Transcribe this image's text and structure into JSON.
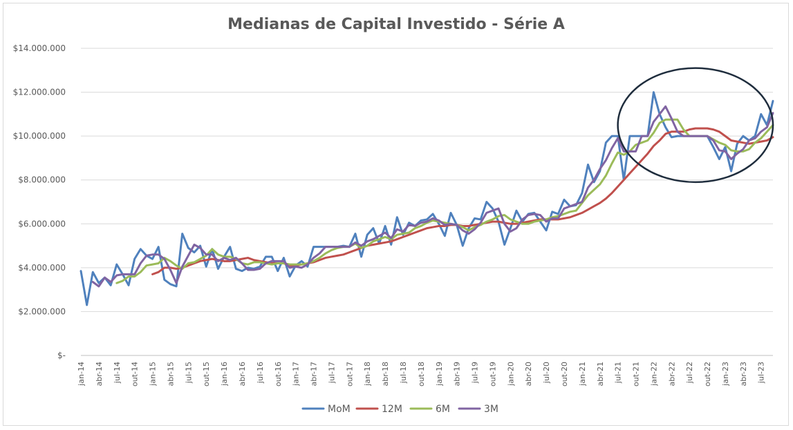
{
  "chart_data": {
    "type": "line",
    "title": "Medianas de Capital Investido - Série A",
    "xlabel": "",
    "ylabel": "",
    "ylim": [
      0,
      14000000
    ],
    "y_ticks": [
      {
        "value": 0,
        "label": "$-"
      },
      {
        "value": 2000000,
        "label": "$2.000.000"
      },
      {
        "value": 4000000,
        "label": "$4.000.000"
      },
      {
        "value": 6000000,
        "label": "$6.000.000"
      },
      {
        "value": 8000000,
        "label": "$8.000.000"
      },
      {
        "value": 10000000,
        "label": "$10.000.000"
      },
      {
        "value": 12000000,
        "label": "$12.000.000"
      },
      {
        "value": 14000000,
        "label": "$14.000.000"
      }
    ],
    "grid": true,
    "legend_position": "bottom",
    "x_tick_labels": [
      "jan-14",
      "abr-14",
      "jul-14",
      "out-14",
      "jan-15",
      "abr-15",
      "jul-15",
      "out-15",
      "jan-16",
      "abr-16",
      "jul-16",
      "out-16",
      "jan-17",
      "abr-17",
      "jul-17",
      "out-17",
      "jan-18",
      "abr-18",
      "jul-18",
      "out-18",
      "jan-19",
      "abr-19",
      "jul-19",
      "out-19",
      "jan-20",
      "abr-20",
      "jul-20",
      "out-20",
      "jan-21",
      "abr-21",
      "jul-21",
      "out-21",
      "jan-22",
      "abr-22",
      "jul-22",
      "out-22",
      "jan-23",
      "abr-23",
      "jul-23"
    ],
    "tick_every": 3,
    "highlight_ellipse": {
      "from_month_index": 90,
      "to_month_index": 116,
      "y_min": 7900000,
      "y_max": 13100000
    },
    "series": [
      {
        "name": "MoM",
        "color": "#4f81bd",
        "values": [
          3850000,
          2300000,
          3800000,
          3300000,
          3550000,
          3200000,
          4150000,
          3700000,
          3200000,
          4400000,
          4850000,
          4550000,
          4400000,
          4950000,
          3450000,
          3250000,
          3150000,
          5550000,
          4900000,
          4700000,
          5000000,
          4050000,
          4850000,
          3950000,
          4500000,
          4950000,
          3950000,
          3850000,
          4000000,
          3950000,
          4050000,
          4500000,
          4500000,
          3850000,
          4450000,
          3600000,
          4100000,
          4300000,
          4050000,
          4950000,
          4950000,
          4950000,
          4950000,
          4950000,
          5000000,
          4950000,
          5550000,
          4500000,
          5500000,
          5800000,
          5100000,
          5900000,
          5050000,
          6300000,
          5500000,
          6050000,
          5900000,
          6150000,
          6200000,
          6450000,
          6000000,
          5450000,
          6500000,
          5950000,
          5000000,
          5800000,
          6250000,
          6200000,
          7000000,
          6700000,
          6100000,
          5050000,
          5800000,
          6600000,
          6100000,
          6450000,
          6500000,
          6100000,
          5700000,
          6550000,
          6450000,
          7100000,
          6800000,
          6850000,
          7400000,
          8700000,
          7900000,
          8400000,
          9700000,
          10000000,
          10000000,
          8000000,
          10000000,
          10000000,
          10000000,
          10000000,
          12000000,
          11000000,
          10400000,
          9950000,
          10000000,
          10000000,
          10000000,
          10000000,
          10000000,
          10000000,
          9500000,
          8950000,
          9500000,
          8400000,
          9650000,
          10000000,
          9800000,
          10000000,
          11000000,
          10500000,
          11600000
        ]
      },
      {
        "name": "12M",
        "color": "#c0504d",
        "values": [
          null,
          null,
          null,
          null,
          null,
          null,
          null,
          null,
          null,
          null,
          null,
          null,
          3700000,
          3800000,
          4000000,
          4000000,
          3950000,
          4000000,
          4100000,
          4200000,
          4300000,
          4350000,
          4400000,
          4350000,
          4300000,
          4300000,
          4350000,
          4400000,
          4450000,
          4350000,
          4300000,
          4250000,
          4200000,
          4200000,
          4200000,
          4100000,
          4100000,
          4150000,
          4200000,
          4250000,
          4350000,
          4450000,
          4500000,
          4550000,
          4600000,
          4700000,
          4800000,
          4900000,
          5000000,
          5050000,
          5100000,
          5150000,
          5200000,
          5300000,
          5400000,
          5500000,
          5600000,
          5700000,
          5800000,
          5850000,
          5900000,
          5900000,
          5950000,
          5950000,
          5900000,
          5900000,
          5950000,
          6000000,
          6050000,
          6100000,
          6100000,
          6050000,
          6000000,
          6000000,
          6050000,
          6100000,
          6150000,
          6200000,
          6200000,
          6200000,
          6200000,
          6250000,
          6300000,
          6400000,
          6500000,
          6650000,
          6800000,
          6950000,
          7150000,
          7400000,
          7700000,
          8000000,
          8300000,
          8600000,
          8900000,
          9200000,
          9550000,
          9800000,
          10100000,
          10200000,
          10200000,
          10200000,
          10300000,
          10350000,
          10350000,
          10350000,
          10300000,
          10200000,
          10000000,
          9800000,
          9750000,
          9700000,
          9650000,
          9700000,
          9750000,
          9800000,
          9950000
        ]
      },
      {
        "name": "6M",
        "color": "#9bbb59",
        "values": [
          null,
          null,
          null,
          null,
          null,
          null,
          3300000,
          3400000,
          3600000,
          3600000,
          3800000,
          4100000,
          4150000,
          4200000,
          4450000,
          4300000,
          4100000,
          3950000,
          4200000,
          4250000,
          4400000,
          4550000,
          4850000,
          4600000,
          4500000,
          4500000,
          4400000,
          4200000,
          4150000,
          4250000,
          4250000,
          4200000,
          4150000,
          4200000,
          4200000,
          4150000,
          4150000,
          4150000,
          4200000,
          4300000,
          4450000,
          4650000,
          4800000,
          4900000,
          4950000,
          4950000,
          5100000,
          4900000,
          5000000,
          5200000,
          5300000,
          5400000,
          5300000,
          5500000,
          5550000,
          5600000,
          5800000,
          5900000,
          6050000,
          6150000,
          6100000,
          6050000,
          6000000,
          5950000,
          5850000,
          5700000,
          5850000,
          5950000,
          6100000,
          6200000,
          6350000,
          6400000,
          6200000,
          6100000,
          6000000,
          6000000,
          6100000,
          6150000,
          6200000,
          6300000,
          6350000,
          6450000,
          6550000,
          6600000,
          6950000,
          7300000,
          7550000,
          7800000,
          8200000,
          8750000,
          9250000,
          9150000,
          9300000,
          9600000,
          9700000,
          9800000,
          10150000,
          10600000,
          10750000,
          10750000,
          10750000,
          10300000,
          10000000,
          10000000,
          10000000,
          10000000,
          9850000,
          9700000,
          9600000,
          9350000,
          9300000,
          9300000,
          9400000,
          9700000,
          9900000,
          10200000,
          10500000
        ]
      },
      {
        "name": "3M",
        "color": "#8064a2",
        "values": [
          null,
          null,
          3350000,
          3150000,
          3550000,
          3350000,
          3650000,
          3700000,
          3700000,
          3700000,
          4200000,
          4550000,
          4600000,
          4600000,
          4400000,
          3900000,
          3300000,
          4050000,
          4550000,
          5050000,
          4900000,
          4600000,
          4600000,
          4300000,
          4450000,
          4350000,
          4450000,
          4200000,
          3900000,
          3900000,
          3950000,
          4200000,
          4300000,
          4300000,
          4300000,
          4000000,
          4050000,
          4000000,
          4150000,
          4450000,
          4650000,
          4950000,
          4950000,
          4950000,
          4950000,
          4950000,
          5150000,
          5000000,
          5200000,
          5300000,
          5450000,
          5600000,
          5350000,
          5750000,
          5650000,
          5950000,
          5900000,
          6050000,
          6100000,
          6250000,
          6150000,
          5950000,
          6000000,
          5950000,
          5700000,
          5550000,
          5750000,
          6050000,
          6500000,
          6600000,
          6700000,
          6000000,
          5650000,
          5800000,
          6200000,
          6400000,
          6450000,
          6400000,
          6100000,
          6250000,
          6250000,
          6700000,
          6800000,
          6900000,
          7000000,
          7650000,
          8000000,
          8500000,
          8900000,
          9450000,
          9900000,
          9300000,
          9300000,
          9300000,
          10000000,
          10000000,
          10650000,
          11000000,
          11350000,
          10800000,
          10200000,
          10000000,
          10000000,
          10000000,
          10000000,
          10000000,
          9800000,
          9350000,
          9300000,
          8950000,
          9200000,
          9400000,
          9800000,
          9900000,
          10200000,
          10400000,
          11050000
        ]
      }
    ]
  }
}
